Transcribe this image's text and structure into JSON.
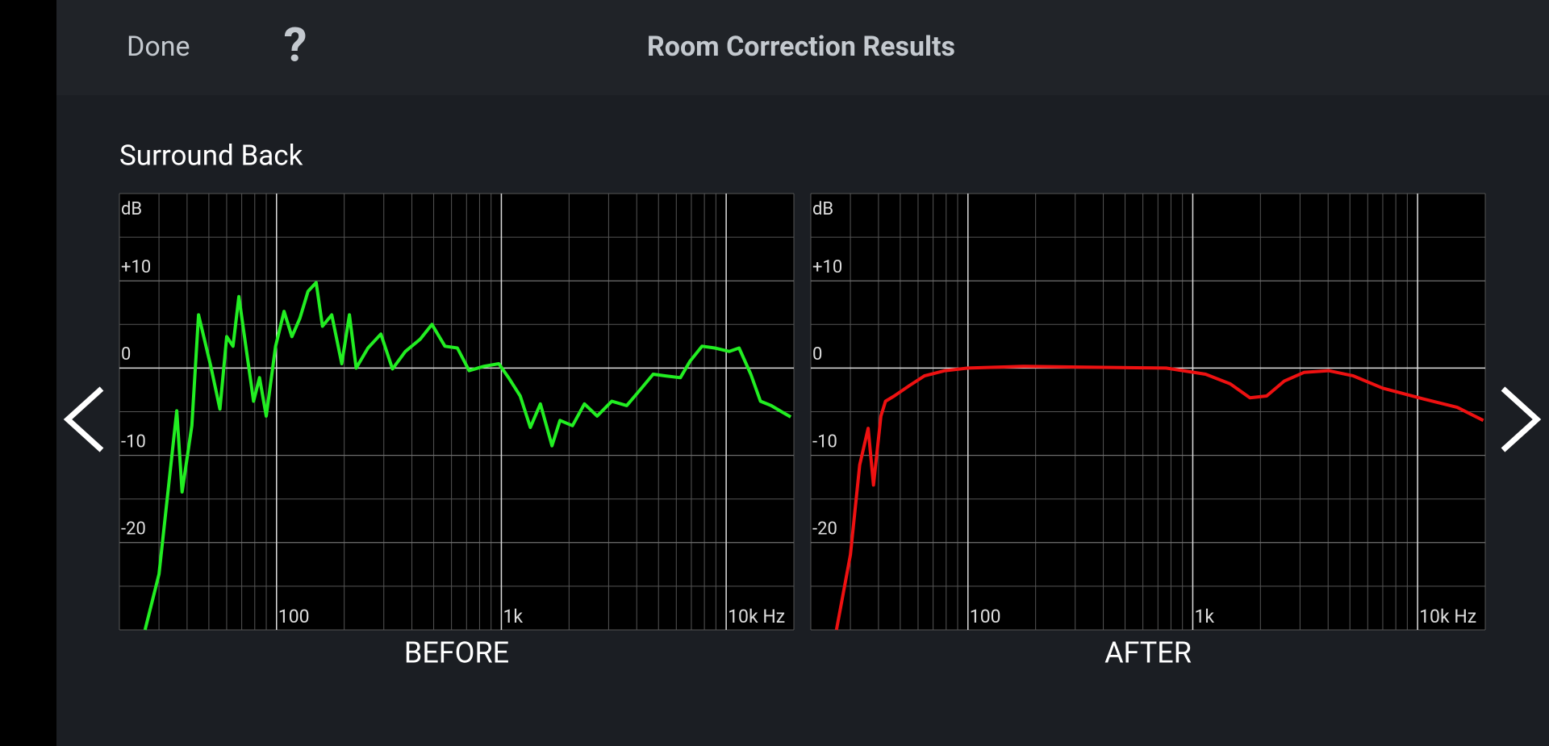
{
  "header": {
    "done": "Done",
    "help": "?",
    "title": "Room Correction Results"
  },
  "channel": "Surround Back",
  "chart_data": [
    {
      "type": "line",
      "title": "BEFORE",
      "y_label": "dB",
      "xscale": "log",
      "grid": true,
      "minor_grid": true,
      "color": "#22ee22",
      "xlim": [
        20,
        20000
      ],
      "ylim": [
        -30,
        20
      ],
      "xticks": [
        100,
        {
          "value": 1000,
          "label": "1k"
        },
        {
          "value": 10000,
          "label": "10k Hz"
        }
      ],
      "yticks": [
        {
          "value": 10,
          "label": "+10"
        },
        0,
        -10,
        -20
      ],
      "x": [
        26,
        30,
        36,
        38,
        42,
        45,
        51,
        56,
        60,
        64,
        68,
        73,
        79,
        84,
        90,
        99,
        108,
        117,
        127,
        138,
        150,
        160,
        176,
        195,
        211,
        226,
        255,
        291,
        328,
        374,
        435,
        491,
        561,
        637,
        719,
        837,
        974,
        1077,
        1213,
        1346,
        1491,
        1680,
        1823,
        2071,
        2342,
        2667,
        3098,
        3611,
        4111,
        4735,
        5382,
        6256,
        6912,
        7809,
        8890,
        10330,
        11410,
        12870,
        14210,
        15860,
        17350,
        19370
      ],
      "values": [
        -30,
        -23.6,
        -4.9,
        -14.2,
        -6.6,
        6.1,
        0.2,
        -4.7,
        3.6,
        2.5,
        8.2,
        2.5,
        -3.8,
        -1.1,
        -5.5,
        2.5,
        6.5,
        3.6,
        5.7,
        8.8,
        9.8,
        4.8,
        6.1,
        0.5,
        6.1,
        0,
        2.3,
        3.9,
        -0.1,
        1.9,
        3.3,
        5,
        2.5,
        2.3,
        -0.3,
        0.2,
        0.5,
        -1.1,
        -3.2,
        -6.8,
        -4.1,
        -8.9,
        -6,
        -6.6,
        -4.1,
        -5.5,
        -3.8,
        -4.3,
        -2.6,
        -0.7,
        -0.9,
        -1.1,
        0.8,
        2.5,
        2.3,
        1.9,
        2.3,
        -0.7,
        -3.8,
        -4.3,
        -4.9,
        -5.6
      ]
    },
    {
      "type": "line",
      "title": "AFTER",
      "y_label": "dB",
      "xscale": "log",
      "grid": true,
      "minor_grid": true,
      "color": "#ee1111",
      "xlim": [
        20,
        20000
      ],
      "ylim": [
        -30,
        20
      ],
      "xticks": [
        100,
        {
          "value": 1000,
          "label": "1k"
        },
        {
          "value": 10000,
          "label": "10k Hz"
        }
      ],
      "yticks": [
        {
          "value": 10,
          "label": "+10"
        },
        0,
        -10,
        -20
      ],
      "x": [
        26,
        30,
        33,
        36,
        38,
        41,
        43,
        47,
        55,
        64,
        79,
        100,
        176,
        339,
        761,
        1140,
        1467,
        1796,
        2130,
        2550,
        3120,
        4020,
        5180,
        7000,
        10500,
        15000,
        19600
      ],
      "values": [
        -30,
        -21.4,
        -11.1,
        -6.9,
        -13.4,
        -5.5,
        -3.8,
        -3.2,
        -2,
        -0.9,
        -0.3,
        0,
        0.2,
        0.1,
        0,
        -0.7,
        -1.8,
        -3.4,
        -3.2,
        -1.5,
        -0.5,
        -0.3,
        -0.9,
        -2.3,
        -3.5,
        -4.5,
        -6
      ]
    }
  ]
}
